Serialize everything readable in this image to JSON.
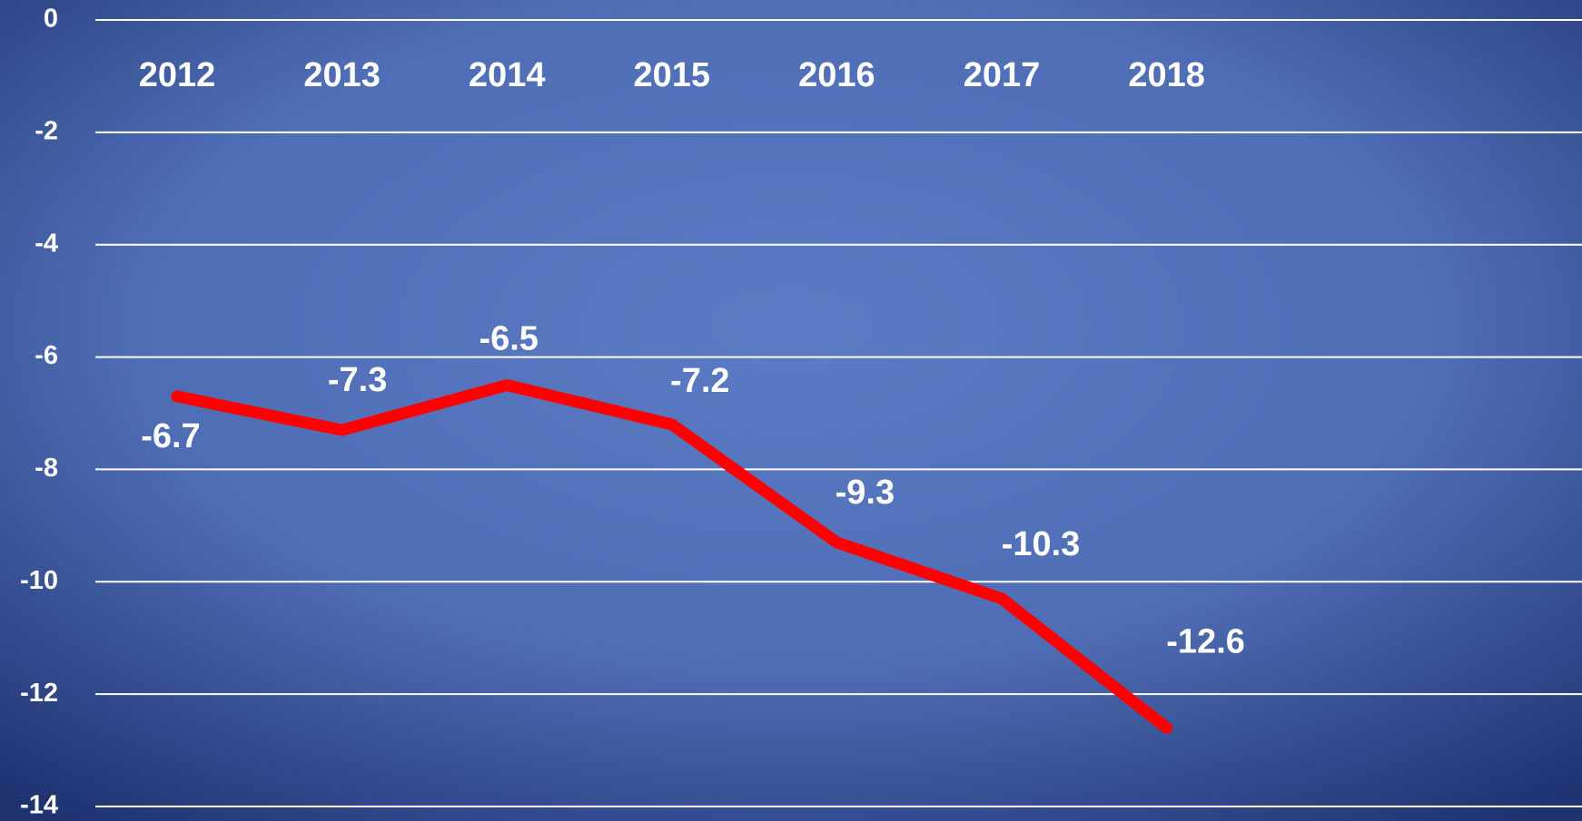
{
  "chart_data": {
    "type": "line",
    "categories": [
      "2012",
      "2013",
      "2014",
      "2015",
      "2016",
      "2017",
      "2018"
    ],
    "series": [
      {
        "color": "#ff0000",
        "values": [
          -6.7,
          -7.3,
          -6.5,
          -7.2,
          -9.3,
          -10.3,
          -12.6
        ]
      }
    ],
    "ylim": [
      -14,
      0
    ],
    "yticks": [
      0,
      -2,
      -4,
      -6,
      -8,
      -10,
      -12,
      -14
    ],
    "grid": true
  }
}
